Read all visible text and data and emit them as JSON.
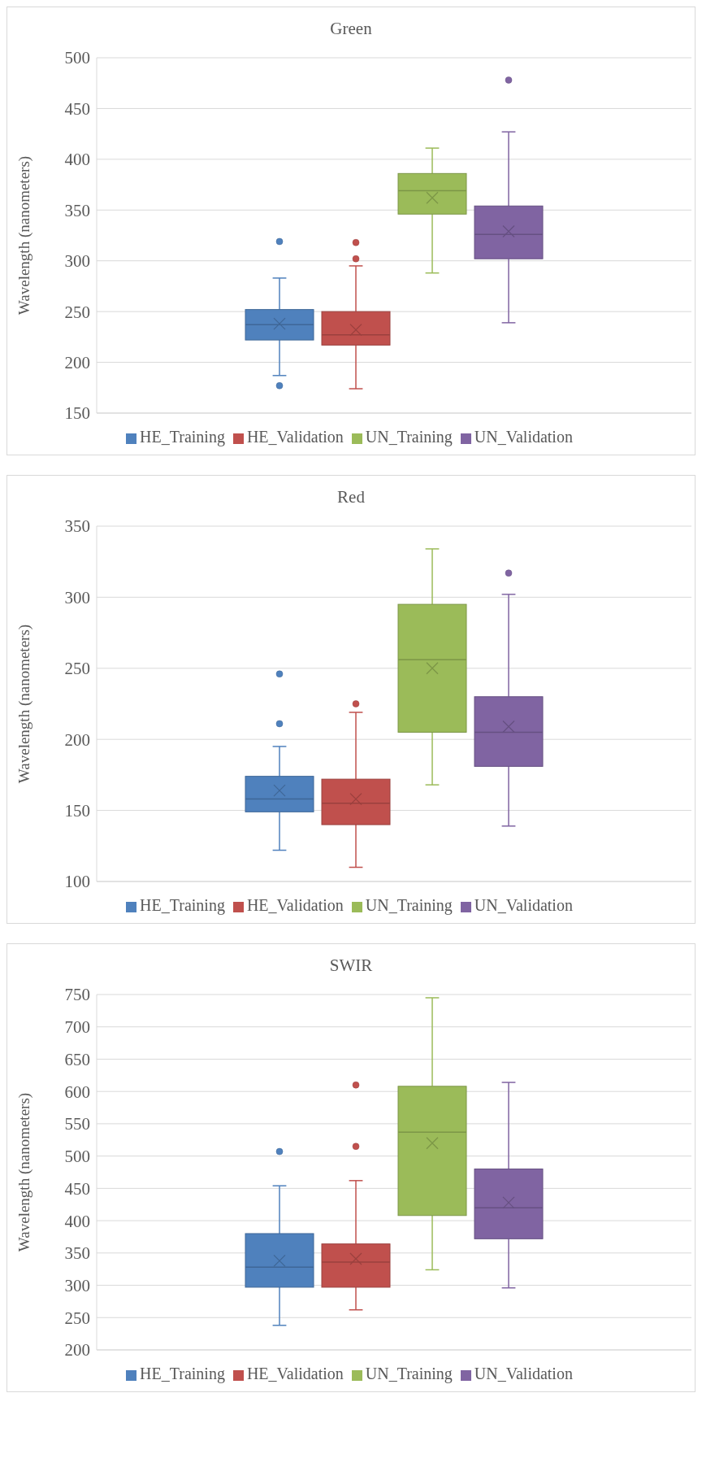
{
  "chart_data": [
    {
      "type": "box",
      "title": "Green",
      "ylabel": "Wavelength (nanometers)",
      "categories": [
        null
      ],
      "ylim": [
        150,
        500
      ],
      "yticks": [
        150,
        200,
        250,
        300,
        350,
        400,
        450,
        500
      ],
      "grid": "y",
      "legend": "bottom",
      "series": [
        {
          "name": "HE_Training",
          "color": "#4f81bd",
          "boxes": [
            {
              "low": 187,
              "q1": 222,
              "median": 237,
              "q3": 252,
              "high": 283,
              "mean": 238,
              "outliers": [
                319,
                177
              ]
            }
          ]
        },
        {
          "name": "HE_Validation",
          "color": "#c0504d",
          "boxes": [
            {
              "low": 174,
              "q1": 217,
              "median": 227,
              "q3": 250,
              "high": 295,
              "mean": 232,
              "outliers": [
                318,
                302
              ]
            }
          ]
        },
        {
          "name": "UN_Training",
          "color": "#9bbb59",
          "boxes": [
            {
              "low": 288,
              "q1": 346,
              "median": 369,
              "q3": 386,
              "high": 411,
              "mean": 362
            }
          ]
        },
        {
          "name": "UN_Validation",
          "color": "#8064a2",
          "boxes": [
            {
              "low": 239,
              "q1": 302,
              "median": 326,
              "q3": 354,
              "high": 427,
              "mean": 329,
              "outliers": [
                478
              ]
            }
          ]
        }
      ]
    },
    {
      "type": "box",
      "title": "Red",
      "ylabel": "Wavelength (nanometers)",
      "categories": [
        null
      ],
      "ylim": [
        100,
        350
      ],
      "yticks": [
        100,
        150,
        200,
        250,
        300,
        350
      ],
      "grid": "y",
      "legend": "bottom",
      "series": [
        {
          "name": "HE_Training",
          "color": "#4f81bd",
          "boxes": [
            {
              "low": 122,
              "q1": 149,
              "median": 158,
              "q3": 174,
              "high": 195,
              "mean": 164,
              "outliers": [
                246,
                211
              ]
            }
          ]
        },
        {
          "name": "HE_Validation",
          "color": "#c0504d",
          "boxes": [
            {
              "low": 110,
              "q1": 140,
              "median": 155,
              "q3": 172,
              "high": 219,
              "mean": 158,
              "outliers": [
                225
              ]
            }
          ]
        },
        {
          "name": "UN_Training",
          "color": "#9bbb59",
          "boxes": [
            {
              "low": 168,
              "q1": 205,
              "median": 256,
              "q3": 295,
              "high": 334,
              "mean": 250
            }
          ]
        },
        {
          "name": "UN_Validation",
          "color": "#8064a2",
          "boxes": [
            {
              "low": 139,
              "q1": 181,
              "median": 205,
              "q3": 230,
              "high": 302,
              "mean": 209,
              "outliers": [
                317
              ]
            }
          ]
        }
      ]
    },
    {
      "type": "box",
      "title": "SWIR",
      "ylabel": "Wavelength (nanometers)",
      "categories": [
        null
      ],
      "ylim": [
        200,
        750
      ],
      "yticks": [
        200,
        250,
        300,
        350,
        400,
        450,
        500,
        550,
        600,
        650,
        700,
        750
      ],
      "grid": "y",
      "legend": "bottom",
      "series": [
        {
          "name": "HE_Training",
          "color": "#4f81bd",
          "boxes": [
            {
              "low": 238,
              "q1": 297,
              "median": 328,
              "q3": 380,
              "high": 454,
              "mean": 338,
              "outliers": [
                507
              ]
            }
          ]
        },
        {
          "name": "HE_Validation",
          "color": "#c0504d",
          "boxes": [
            {
              "low": 262,
              "q1": 297,
              "median": 336,
              "q3": 364,
              "high": 462,
              "mean": 341,
              "outliers": [
                610,
                515
              ]
            }
          ]
        },
        {
          "name": "UN_Training",
          "color": "#9bbb59",
          "boxes": [
            {
              "low": 324,
              "q1": 408,
              "median": 537,
              "q3": 608,
              "high": 745,
              "mean": 520
            }
          ]
        },
        {
          "name": "UN_Validation",
          "color": "#8064a2",
          "boxes": [
            {
              "low": 296,
              "q1": 372,
              "median": 420,
              "q3": 480,
              "high": 614,
              "mean": 428
            }
          ]
        }
      ]
    }
  ]
}
